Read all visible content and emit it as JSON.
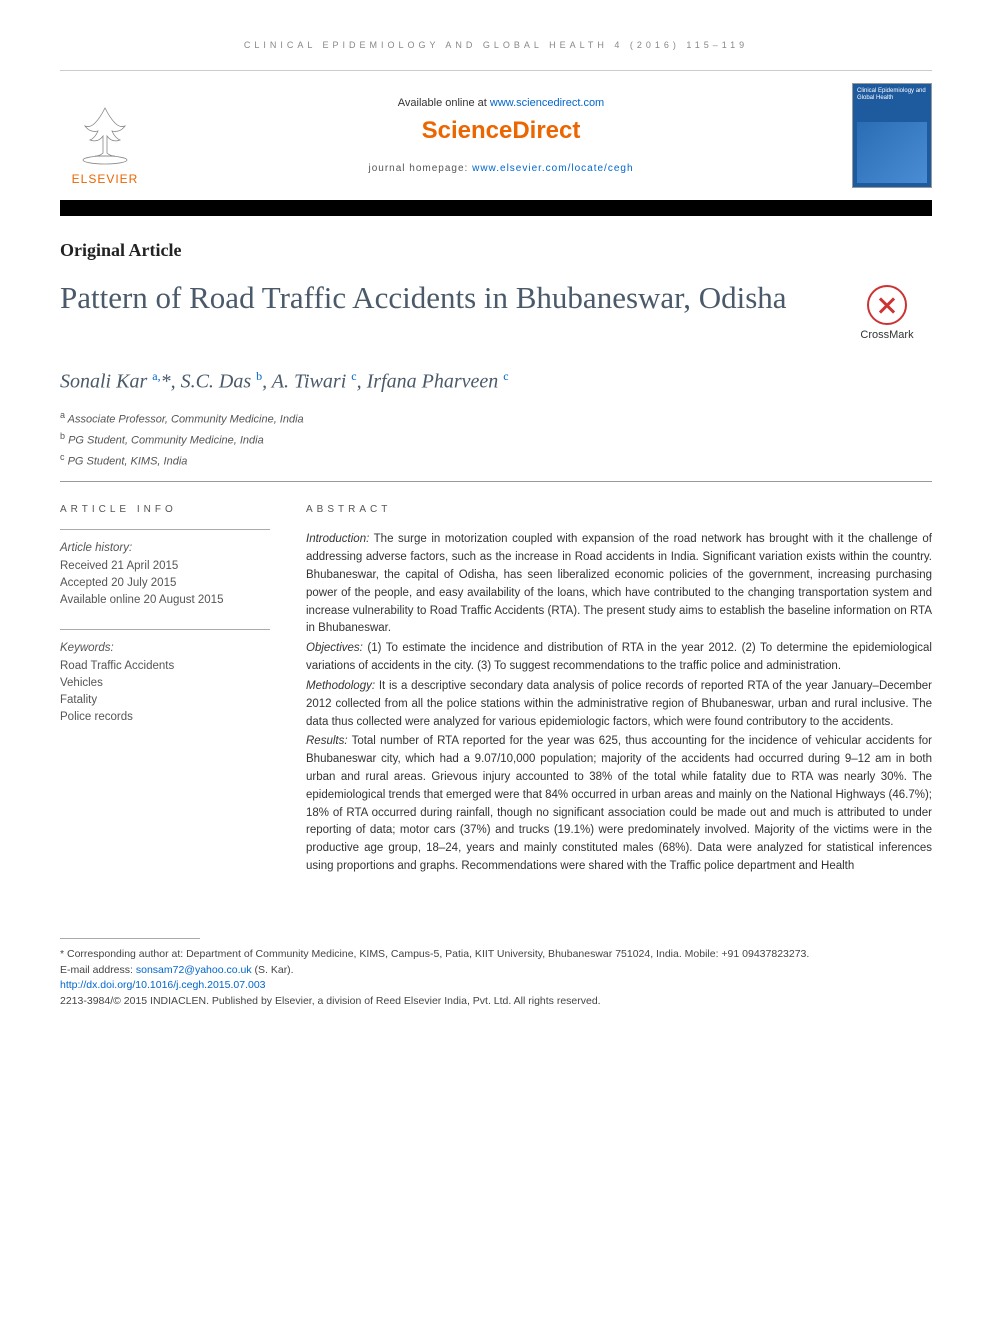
{
  "running_header": "CLINICAL EPIDEMIOLOGY AND GLOBAL HEALTH 4 (2016) 115–119",
  "masthead": {
    "available_prefix": "Available online at ",
    "available_url": "www.sciencedirect.com",
    "brand": "ScienceDirect",
    "homepage_prefix": "journal homepage: ",
    "homepage_url": "www.elsevier.com/locate/cegh",
    "publisher_name": "ELSEVIER",
    "cover_title": "Clinical Epidemiology and Global Health",
    "colors": {
      "brand_orange": "#eb6500",
      "link_blue": "#0066cc",
      "cover_blue": "#1e5a9e"
    }
  },
  "article_type": "Original Article",
  "title": "Pattern of Road Traffic Accidents in Bhubaneswar, Odisha",
  "crossmark_label": "CrossMark",
  "authors_html": "Sonali Kar <sup>a,</sup>*, S.C. Das <sup>b</sup>, A. Tiwari <sup>c</sup>, Irfana Pharveen <sup>c</sup>",
  "affiliations": [
    "a Associate Professor, Community Medicine, India",
    "b PG Student, Community Medicine, India",
    "c PG Student, KIMS, India"
  ],
  "article_info": {
    "heading": "ARTICLE INFO",
    "history_title": "Article history:",
    "history": [
      "Received 21 April 2015",
      "Accepted 20 July 2015",
      "Available online 20 August 2015"
    ],
    "keywords_title": "Keywords:",
    "keywords": [
      "Road Traffic Accidents",
      "Vehicles",
      "Fatality",
      "Police records"
    ]
  },
  "abstract": {
    "heading": "ABSTRACT",
    "sections": [
      {
        "title": "Introduction:",
        "text": "The surge in motorization coupled with expansion of the road network has brought with it the challenge of addressing adverse factors, such as the increase in Road accidents in India. Significant variation exists within the country. Bhubaneswar, the capital of Odisha, has seen liberalized economic policies of the government, increasing purchasing power of the people, and easy availability of the loans, which have contributed to the changing transportation system and increase vulnerability to Road Traffic Accidents (RTA). The present study aims to establish the baseline information on RTA in Bhubaneswar."
      },
      {
        "title": "Objectives:",
        "text": "(1) To estimate the incidence and distribution of RTA in the year 2012. (2) To determine the epidemiological variations of accidents in the city. (3) To suggest recommendations to the traffic police and administration."
      },
      {
        "title": "Methodology:",
        "text": "It is a descriptive secondary data analysis of police records of reported RTA of the year January–December 2012 collected from all the police stations within the administrative region of Bhubaneswar, urban and rural inclusive. The data thus collected were analyzed for various epidemiologic factors, which were found contributory to the accidents."
      },
      {
        "title": "Results:",
        "text": "Total number of RTA reported for the year was 625, thus accounting for the incidence of vehicular accidents for Bhubaneswar city, which had a 9.07/10,000 population; majority of the accidents had occurred during 9–12 am in both urban and rural areas. Grievous injury accounted to 38% of the total while fatality due to RTA was nearly 30%. The epidemiological trends that emerged were that 84% occurred in urban areas and mainly on the National Highways (46.7%); 18% of RTA occurred during rainfall, though no significant association could be made out and much is attributed to under reporting of data; motor cars (37%) and trucks (19.1%) were predominately involved. Majority of the victims were in the productive age group, 18–24, years and mainly constituted males (68%). Data were analyzed for statistical inferences using proportions and graphs. Recommendations were shared with the Traffic police department and Health"
      }
    ]
  },
  "footnotes": {
    "corresponding": "* Corresponding author at: Department of Community Medicine, KIMS, Campus-5, Patia, KIIT University, Bhubaneswar 751024, India. Mobile: +91 09437823273.",
    "email_label": "E-mail address: ",
    "email": "sonsam72@yahoo.co.uk",
    "email_suffix": " (S. Kar).",
    "doi": "http://dx.doi.org/10.1016/j.cegh.2015.07.003",
    "copyright": "2213-3984/© 2015 INDIACLEN. Published by Elsevier, a division of Reed Elsevier India, Pvt. Ltd. All rights reserved."
  }
}
